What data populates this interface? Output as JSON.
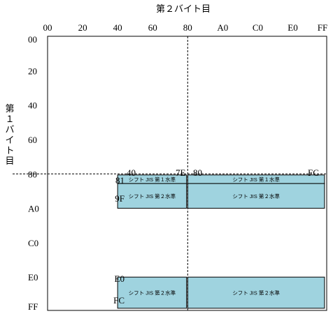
{
  "diagram": {
    "x_axis_title": "第２バイト目",
    "y_axis_title": "第１バイト目",
    "x_ticks": [
      "00",
      "20",
      "40",
      "60",
      "80",
      "A0",
      "C0",
      "E0",
      "FF"
    ],
    "y_ticks": [
      "00",
      "20",
      "40",
      "60",
      "80",
      "A0",
      "C0",
      "E0",
      "FF"
    ],
    "x_range": [
      0,
      255
    ],
    "y_range": [
      0,
      255
    ],
    "divider_x": 128,
    "divider_y": 128,
    "boundary_labels": {
      "lead_first": "81",
      "lead_last": "9F",
      "lead2_first": "E0",
      "lead2_last": "FC",
      "trail_low_first": "40",
      "trail_low_last": "7E",
      "trail_high_first": "80",
      "trail_high_last": "FC"
    },
    "regions": [
      {
        "name": "region-level1-low",
        "label": "シフト JIS 第１水準",
        "byte1": [
          129,
          136
        ],
        "byte2": [
          64,
          126
        ]
      },
      {
        "name": "region-level2-low",
        "label": "シフト JIS 第２水準",
        "byte1": [
          137,
          159
        ],
        "byte2": [
          64,
          126
        ]
      },
      {
        "name": "region-level1-high",
        "label": "シフト JIS 第１水準",
        "byte1": [
          129,
          136
        ],
        "byte2": [
          128,
          252
        ]
      },
      {
        "name": "region-level2-high",
        "label": "シフト JIS 第２水準",
        "byte1": [
          137,
          159
        ],
        "byte2": [
          128,
          252
        ]
      },
      {
        "name": "region-lead2-low",
        "label": "シフト JIS 第２水準",
        "byte1": [
          224,
          252
        ],
        "byte2": [
          64,
          126
        ]
      },
      {
        "name": "region-lead2-high",
        "label": "シフト JIS 第２水準",
        "byte1": [
          224,
          252
        ],
        "byte2": [
          128,
          252
        ]
      }
    ],
    "colors": {
      "region_fill": "#9fd3df",
      "stroke": "#000000"
    }
  }
}
